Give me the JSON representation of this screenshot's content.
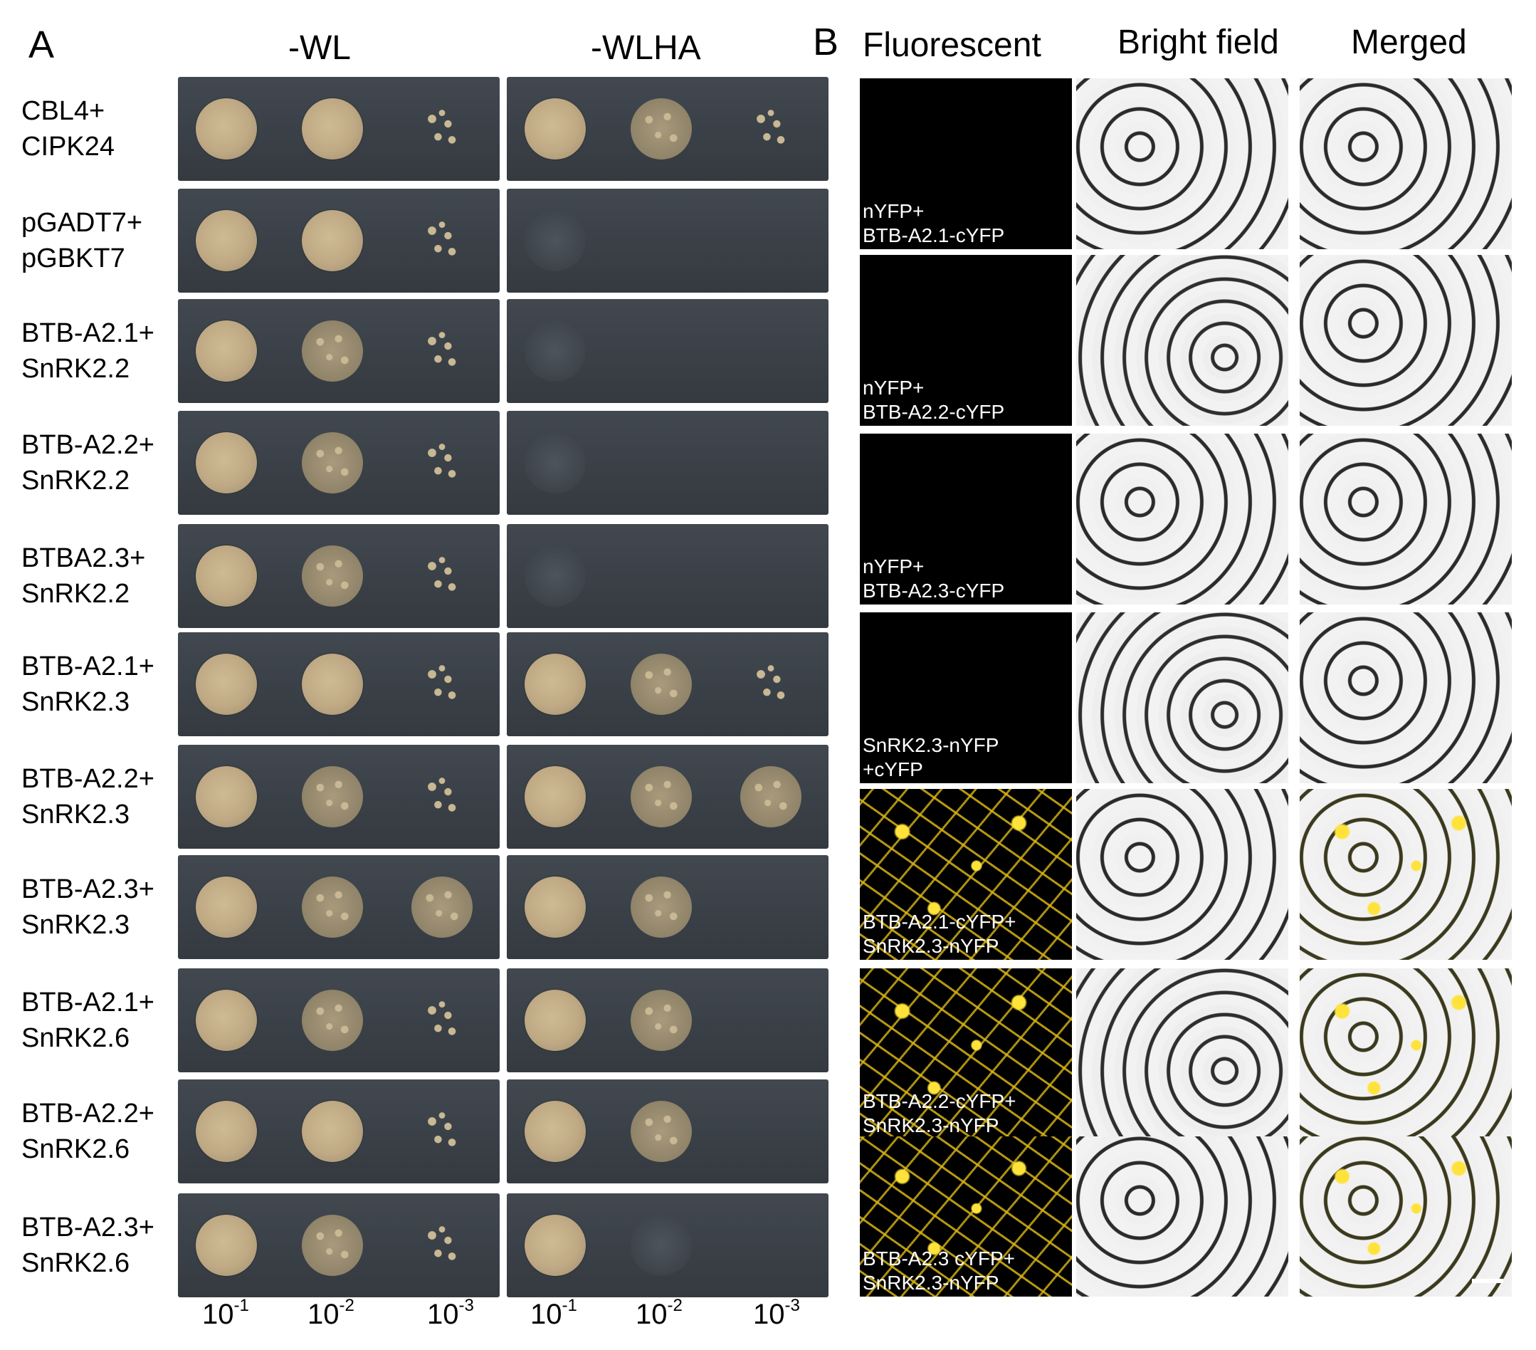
{
  "panel_a": {
    "letter": "A",
    "header_wl": "-WL",
    "header_wlha": "-WLHA",
    "rows": [
      {
        "line1": "CBL4+",
        "line2": "CIPK24",
        "wl": [
          "full",
          "full",
          "sparse"
        ],
        "wlha": [
          "full",
          "mid",
          "sparse"
        ]
      },
      {
        "line1": "pGADT7+",
        "line2": "pGBKT7",
        "wl": [
          "full",
          "full",
          "sparse"
        ],
        "wlha": [
          "faint",
          "none",
          "none"
        ]
      },
      {
        "line1": "BTB-A2.1+",
        "line2": "SnRK2.2",
        "wl": [
          "full",
          "mid",
          "sparse"
        ],
        "wlha": [
          "faint",
          "none",
          "none"
        ]
      },
      {
        "line1": "BTB-A2.2+",
        "line2": "SnRK2.2",
        "wl": [
          "full",
          "mid",
          "sparse"
        ],
        "wlha": [
          "faint",
          "none",
          "none"
        ]
      },
      {
        "line1": "BTBA2.3+",
        "line2": "SnRK2.2",
        "wl": [
          "full",
          "mid",
          "sparse"
        ],
        "wlha": [
          "faint",
          "none",
          "none"
        ]
      },
      {
        "line1": "BTB-A2.1+",
        "line2": "SnRK2.3",
        "wl": [
          "full",
          "full",
          "sparse"
        ],
        "wlha": [
          "full",
          "mid",
          "sparse"
        ]
      },
      {
        "line1": "BTB-A2.2+",
        "line2": "SnRK2.3",
        "wl": [
          "full",
          "mid",
          "sparse"
        ],
        "wlha": [
          "full",
          "mid",
          "mid"
        ]
      },
      {
        "line1": "BTB-A2.3+",
        "line2": "SnRK2.3",
        "wl": [
          "full",
          "mid",
          "mid"
        ],
        "wlha": [
          "full",
          "mid",
          "none"
        ]
      },
      {
        "line1": "BTB-A2.1+",
        "line2": "SnRK2.6",
        "wl": [
          "full",
          "mid",
          "sparse"
        ],
        "wlha": [
          "full",
          "mid",
          "none"
        ]
      },
      {
        "line1": "BTB-A2.2+",
        "line2": "SnRK2.6",
        "wl": [
          "full",
          "full",
          "sparse"
        ],
        "wlha": [
          "full",
          "mid",
          "none"
        ]
      },
      {
        "line1": "BTB-A2.3+",
        "line2": "SnRK2.6",
        "wl": [
          "full",
          "mid",
          "sparse"
        ],
        "wlha": [
          "full",
          "faint",
          "none"
        ]
      }
    ],
    "dilutions": [
      {
        "base": "10",
        "exp": "-1"
      },
      {
        "base": "10",
        "exp": "-2"
      },
      {
        "base": "10",
        "exp": "-3"
      },
      {
        "base": "10",
        "exp": "-1"
      },
      {
        "base": "10",
        "exp": "-2"
      },
      {
        "base": "10",
        "exp": "-3"
      }
    ]
  },
  "panel_b": {
    "letter": "B",
    "headers": [
      "Fluorescent",
      "Bright field",
      "Merged"
    ],
    "rows": [
      {
        "label1": "nYFP+",
        "label2": "BTB-A2.1-cYFP",
        "signal": false
      },
      {
        "label1": "nYFP+",
        "label2": "BTB-A2.2-cYFP",
        "signal": false
      },
      {
        "label1": "nYFP+",
        "label2": "BTB-A2.3-cYFP",
        "signal": false
      },
      {
        "label1": "SnRK2.3-nYFP",
        "label2": "+cYFP",
        "signal": false
      },
      {
        "label1": "BTB-A2.1-cYFP+",
        "label2": "SnRK2.3-nYFP",
        "signal": true
      },
      {
        "label1": "BTB-A2.2-cYFP+",
        "label2": "SnRK2.3-nYFP",
        "signal": true
      },
      {
        "label1": "BTB-A2.3 cYFP+",
        "label2": "SnRK2.3-nYFP",
        "signal": true
      }
    ]
  }
}
